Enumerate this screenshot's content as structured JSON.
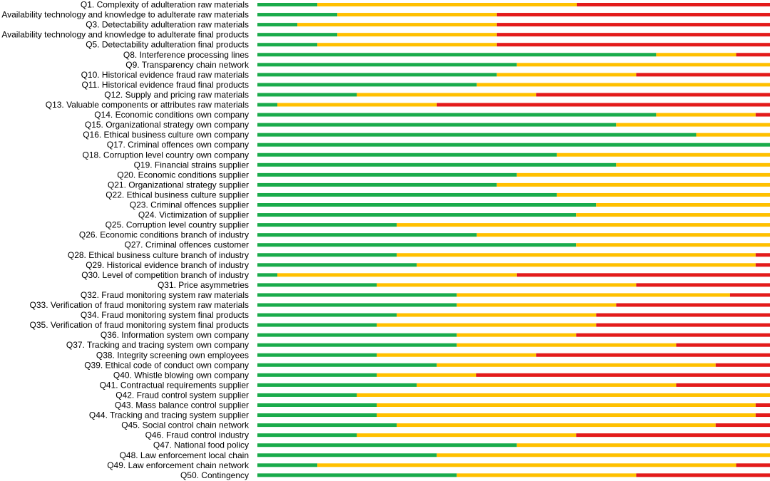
{
  "chart_data": {
    "type": "bar",
    "orientation": "horizontal",
    "stacked": true,
    "normalized": true,
    "xlim": [
      0,
      1
    ],
    "grid": false,
    "legend": "none",
    "colors": {
      "green": "#1aab4b",
      "amber": "#ffc000",
      "red": "#e31b1b"
    },
    "categories": [
      "Q1. Complexity of adulteration raw materials",
      "Q2. Availability technology and knowledge to adulterate raw materials",
      "Q3. Detectability adulteration raw materials",
      "Q4. Availability technology and knowledge to adulterate final products",
      "Q5. Detectability adulteration final products",
      "Q8. Interference processing lines",
      "Q9. Transparency chain network",
      "Q10. Historical evidence fraud raw materials",
      "Q11. Historical evidence fraud final products",
      "Q12. Supply and pricing raw materials",
      "Q13. Valuable components or attributes raw materials",
      "Q14. Economic conditions own company",
      "Q15. Organizational strategy own company",
      "Q16. Ethical business culture own company",
      "Q17. Criminal offences own company",
      "Q18. Corruption level country own company",
      "Q19. Financial strains supplier",
      "Q20. Economic conditions supplier",
      "Q21. Organizational strategy supplier",
      "Q22. Ethical business culture supplier",
      "Q23. Criminal offences supplier",
      "Q24. Victimization of supplier",
      "Q25. Corruption level country supplier",
      "Q26. Economic conditions branch of industry",
      "Q27. Criminal offences customer",
      "Q28. Ethical business culture branch of industry",
      "Q29. Historical evidence branch of industry",
      "Q30. Level of competition branch of industry",
      "Q31. Price asymmetries",
      "Q32. Fraud monitoring system raw materials",
      "Q33. Verification of fraud monitoring system raw materials",
      "Q34. Fraud monitoring system final products",
      "Q35. Verification of fraud monitoring system final products",
      "Q36. Information system own company",
      "Q37. Tracking and tracing system own company",
      "Q38. Integrity screening own employees",
      "Q39. Ethical code of conduct own company",
      "Q40. Whistle blowing own company",
      "Q41. Contractual requirements supplier",
      "Q42. Fraud control system supplier",
      "Q43. Mass balance control supplier",
      "Q44. Tracking and tracing system supplier",
      "Q45. Social control chain network",
      "Q46. Fraud control industry",
      "Q47. National food policy",
      "Q48. Law enforcement local chain",
      "Q49. Law enforcement chain network",
      "Q50. Contingency"
    ],
    "series": [
      {
        "color": "#1aab4b",
        "values": [
          0.117,
          0.156,
          0.078,
          0.156,
          0.117,
          0.778,
          0.506,
          0.467,
          0.428,
          0.194,
          0.039,
          0.778,
          0.7,
          0.856,
          1.0,
          0.584,
          0.7,
          0.506,
          0.467,
          0.584,
          0.661,
          0.622,
          0.272,
          0.428,
          0.622,
          0.272,
          0.311,
          0.039,
          0.233,
          0.389,
          0.389,
          0.272,
          0.233,
          0.389,
          0.389,
          0.233,
          0.35,
          0.233,
          0.311,
          0.194,
          0.233,
          0.233,
          0.272,
          0.194,
          0.506,
          0.35,
          0.117,
          0.389
        ]
      },
      {
        "color": "#ffc000",
        "values": [
          0.506,
          0.311,
          0.389,
          0.311,
          0.35,
          0.156,
          0.494,
          0.272,
          0.572,
          0.35,
          0.311,
          0.194,
          0.3,
          0.144,
          0.0,
          0.416,
          0.3,
          0.494,
          0.533,
          0.416,
          0.339,
          0.378,
          0.728,
          0.572,
          0.378,
          0.7,
          0.661,
          0.467,
          0.506,
          0.533,
          0.311,
          0.389,
          0.428,
          0.233,
          0.428,
          0.311,
          0.544,
          0.194,
          0.506,
          0.806,
          0.739,
          0.739,
          0.622,
          0.428,
          0.494,
          0.65,
          0.817,
          0.35
        ]
      },
      {
        "color": "#e31b1b",
        "values": [
          0.377,
          0.533,
          0.533,
          0.533,
          0.533,
          0.066,
          0.0,
          0.261,
          0.0,
          0.456,
          0.65,
          0.028,
          0.0,
          0.0,
          0.0,
          0.0,
          0.0,
          0.0,
          0.0,
          0.0,
          0.0,
          0.0,
          0.0,
          0.0,
          0.0,
          0.028,
          0.028,
          0.494,
          0.261,
          0.078,
          0.3,
          0.339,
          0.339,
          0.378,
          0.183,
          0.456,
          0.106,
          0.573,
          0.183,
          0.0,
          0.028,
          0.028,
          0.106,
          0.378,
          0.0,
          0.0,
          0.066,
          0.261
        ]
      }
    ]
  }
}
